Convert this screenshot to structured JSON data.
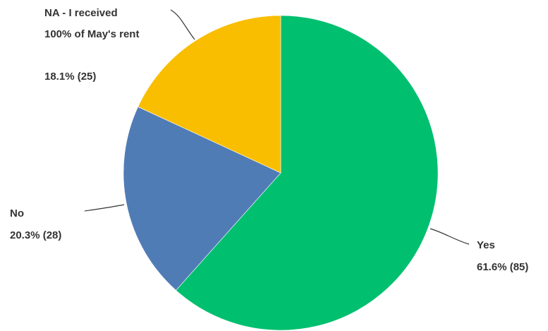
{
  "chart_data": {
    "type": "pie",
    "slices": [
      {
        "label": "Yes",
        "value_text": "61.6% (85)",
        "percent": 61.6,
        "count": 85,
        "color": "#00bf6f"
      },
      {
        "label": "No",
        "value_text": "20.3% (28)",
        "percent": 20.3,
        "count": 28,
        "color": "#507cb6"
      },
      {
        "label_lines": [
          "NA - I received",
          "100% of May's rent"
        ],
        "value_text": "18.1% (25)",
        "percent": 18.1,
        "count": 25,
        "color": "#f9be00"
      }
    ]
  }
}
